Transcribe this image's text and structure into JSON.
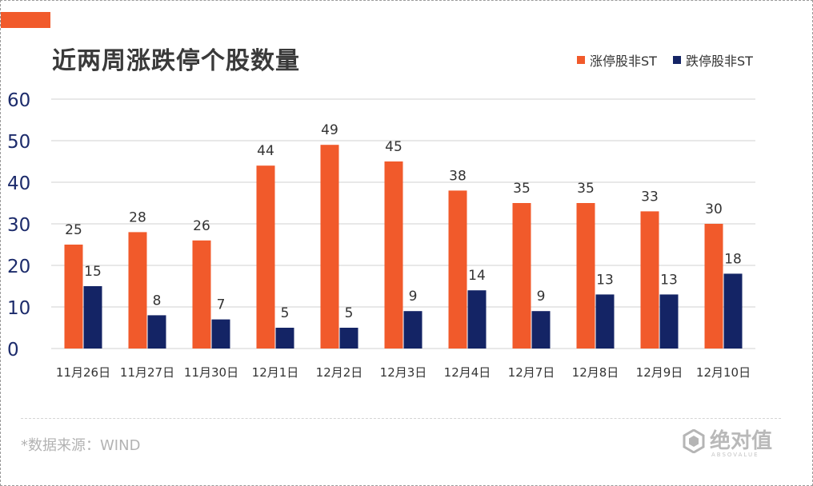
{
  "title": "近两周涨跌停个股数量",
  "colors": {
    "accent": "#f15a2b",
    "up": "#f15a2b",
    "down": "#142465",
    "grid": "#d0d0d0",
    "axis_text": "#1c2b6b"
  },
  "legend": {
    "up_label": "涨停股非ST",
    "down_label": "跌停股非ST"
  },
  "source": "*数据来源：WIND",
  "logo": {
    "text": "绝对值",
    "sub": "ABSOVALUE"
  },
  "chart_data": {
    "type": "bar",
    "title": "近两周涨跌停个股数量",
    "categories": [
      "11月26日",
      "11月27日",
      "11月30日",
      "12月1日",
      "12月2日",
      "12月3日",
      "12月4日",
      "12月7日",
      "12月8日",
      "12月9日",
      "12月10日"
    ],
    "series": [
      {
        "name": "涨停股非ST",
        "color": "#f15a2b",
        "values": [
          25,
          28,
          26,
          44,
          49,
          45,
          38,
          35,
          35,
          33,
          30
        ]
      },
      {
        "name": "跌停股非ST",
        "color": "#142465",
        "values": [
          15,
          8,
          7,
          5,
          5,
          9,
          14,
          9,
          13,
          13,
          18
        ]
      }
    ],
    "ylim": [
      0,
      60
    ],
    "yticks": [
      0,
      10,
      20,
      30,
      40,
      50,
      60
    ],
    "xlabel": "",
    "ylabel": "",
    "grid": true,
    "legend_position": "top-right"
  }
}
